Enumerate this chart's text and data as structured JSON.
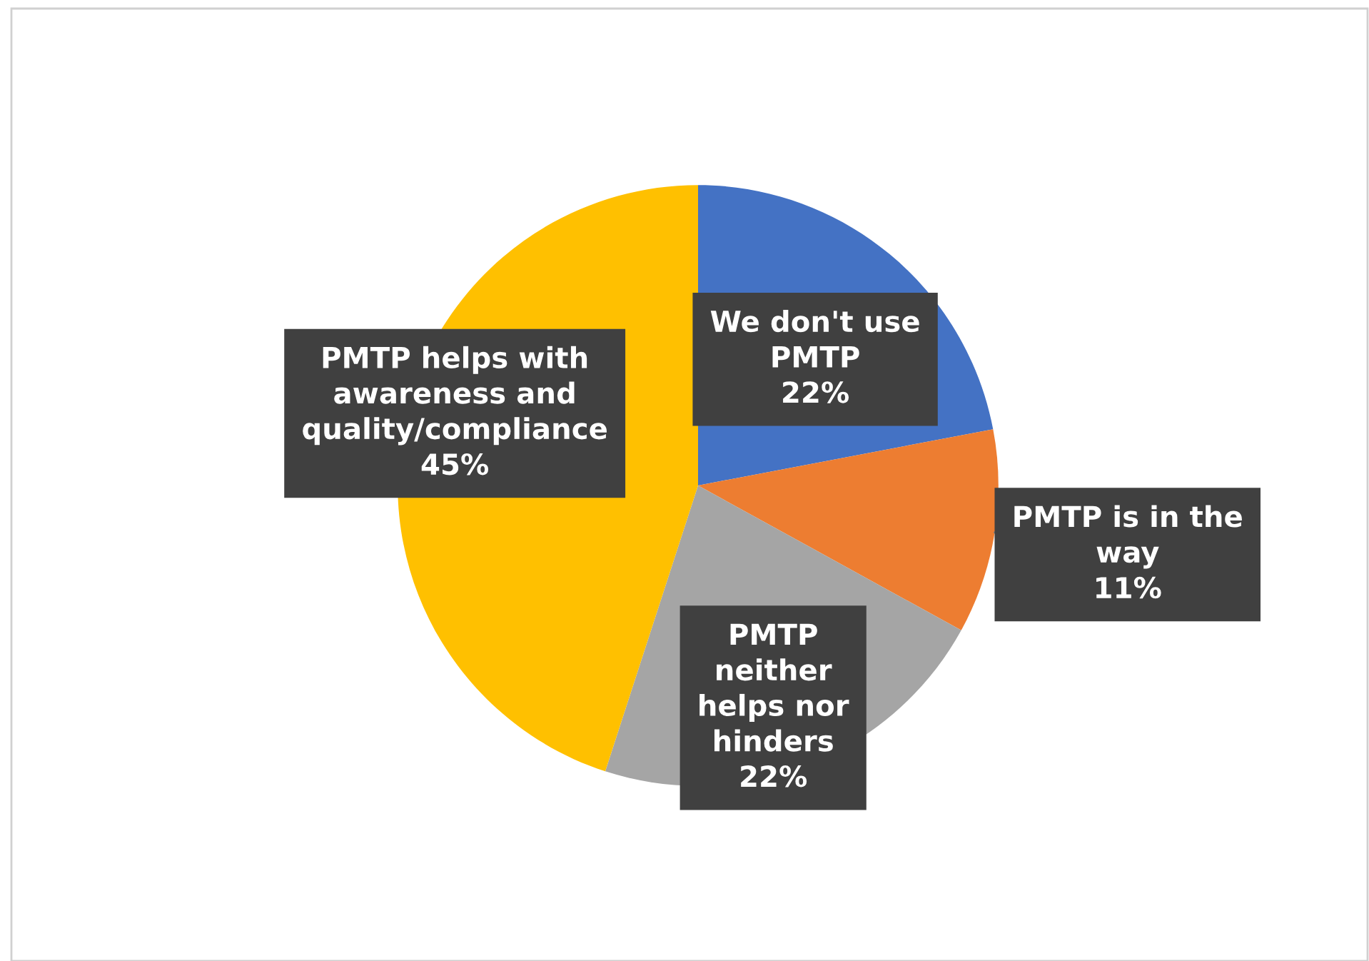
{
  "chart_data": {
    "type": "pie",
    "categories": [
      "We don't use PMTP",
      "PMTP is in the way",
      "PMTP neither helps nor hinders",
      "PMTP helps with awareness and quality/compliance"
    ],
    "values": [
      22,
      11,
      22,
      45
    ],
    "value_labels": [
      "22%",
      "11%",
      "22%",
      "45%"
    ],
    "colors": [
      "#4472c4",
      "#ed7d31",
      "#a5a5a5",
      "#ffc000"
    ],
    "legend": false
  }
}
